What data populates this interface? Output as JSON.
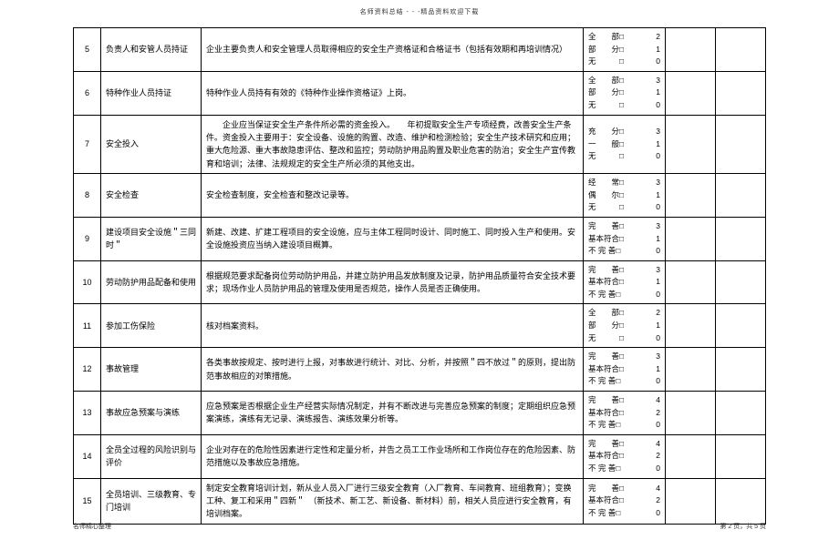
{
  "topHeader": "名师资料总结 - - -精品资料欢迎下载",
  "footerLeft": "名师精心整理",
  "footerRight": "第 2 页，共 5 页",
  "rows": [
    {
      "num": "5",
      "title": "负责人和安管人员持证",
      "content": "企业主要负责人和安全管理人员取得相应的安全生产资格证和合格证书（包括有效期和再培训情况）",
      "scores": [
        {
          "label": "全　　部□",
          "val": "2"
        },
        {
          "label": "部　　分□",
          "val": "1"
        },
        {
          "label": "无　　　□",
          "val": "0"
        }
      ]
    },
    {
      "num": "6",
      "title": "特种作业人员持证",
      "content": "特种作业人员持有有效的《特种作业操作资格证》上岗。",
      "scores": [
        {
          "label": "全　　部□",
          "val": "3"
        },
        {
          "label": "部　　分□",
          "val": "1"
        },
        {
          "label": "无　　　□",
          "val": "0"
        }
      ]
    },
    {
      "num": "7",
      "title": "安全投入",
      "content": "　　企业应当保证安全生产条件所必需的资金投入。　　年初提取安全生产专项经费，改善安全生产条件。资金投入主要用于：安全设备、设施的购置、改造、维护和检测检验；安全生产技术研究和应用；重大危险源、重大事故隐患评估、整改和监控；劳动防护用品购置及职业危害的防治；安全生产宣传教育和培训；法律、法规规定的安全生产所必须的其他支出。",
      "scores": [
        {
          "label": "充　　分□",
          "val": "3"
        },
        {
          "label": "一　　般□",
          "val": "1"
        },
        {
          "label": "无　　　□",
          "val": "0"
        }
      ]
    },
    {
      "num": "8",
      "title": "安全检查",
      "content": "安全检查制度，安全检查和整改记录等。",
      "scores": [
        {
          "label": "经　　常□",
          "val": "3"
        },
        {
          "label": "偶　　尔□",
          "val": "1"
        },
        {
          "label": "无　　　□",
          "val": "0"
        }
      ]
    },
    {
      "num": "9",
      "title": "建设项目安全设施＂三同时＂",
      "content": "新建、改建、扩建工程项目的安全设施，应与主体工程同时设计、同时施工、同时投入生产和使用。安全设施投资应当纳入建设项目概算。",
      "scores": [
        {
          "label": "完　　善□",
          "val": "3"
        },
        {
          "label": "基本符合□",
          "val": "1"
        },
        {
          "label": "不 完 善□",
          "val": "0"
        }
      ]
    },
    {
      "num": "10",
      "title": "劳动防护用品配备和使用",
      "content": "根据规范要求配备岗位劳动防护用品，并建立防护用品发放制度及记录，防护用品质量符合安全技术要求；现场作业人员防护用品的管理及使用是否规范，操作人员是否正确使用。",
      "scores": [
        {
          "label": "完　　善□",
          "val": "3"
        },
        {
          "label": "基本符合□",
          "val": "1"
        },
        {
          "label": "不 完 善□",
          "val": "0"
        }
      ]
    },
    {
      "num": "11",
      "title": "参加工伤保险",
      "content": "核对档案资料。",
      "scores": [
        {
          "label": "全　　部□",
          "val": "2"
        },
        {
          "label": "部　　分□",
          "val": "1"
        },
        {
          "label": "无　　　□",
          "val": "0"
        }
      ]
    },
    {
      "num": "12",
      "title": "事故管理",
      "content": "各类事故按规定、按时进行上报，对事故进行统计、对比、分析，并按照＂四不放过＂的原则，提出防范事故相应的对策措施。",
      "scores": [
        {
          "label": "完　　善□",
          "val": "3"
        },
        {
          "label": "基本符合□",
          "val": "1"
        },
        {
          "label": "不 完 善□",
          "val": "0"
        }
      ]
    },
    {
      "num": "13",
      "title": "事故应急预案与演练",
      "content": "应急预案是否根据企业生产经营实际情况制定，并有不断改进与完善应急预案的制度；定期组织应急预案演练，演练有无记录、演练报告、演练效果分析等。",
      "scores": [
        {
          "label": "完　　善□",
          "val": "4"
        },
        {
          "label": "基本符合□",
          "val": "2"
        },
        {
          "label": "不 完 善□",
          "val": "0"
        }
      ]
    },
    {
      "num": "14",
      "title": "全员全过程的风险识别与评价",
      "content": "企业对存在的危险性因素进行定性和定量分析，并告之员工工作业场所和工作岗位存在的危险因素、防范措施以及事故应急措施。",
      "scores": [
        {
          "label": "完　　善□",
          "val": "4"
        },
        {
          "label": "基本符合□",
          "val": "2"
        },
        {
          "label": "不 完 善□",
          "val": "0"
        }
      ]
    },
    {
      "num": "15",
      "title": "全员培训、三级教育、专门培训",
      "content": "制定安全教育培训计划，新从业人员入厂进行三级安全教育（入厂教育、车间教育、班组教育）；变换工种、复工和采用＂四新＂　（新技术、新工艺、新设备、新材料）前，相关人员应进行安全教育，有培训档案。",
      "scores": [
        {
          "label": "完　　善□",
          "val": "4"
        },
        {
          "label": "基本符合□",
          "val": "2"
        },
        {
          "label": "不 完 善□",
          "val": "0"
        }
      ]
    }
  ]
}
